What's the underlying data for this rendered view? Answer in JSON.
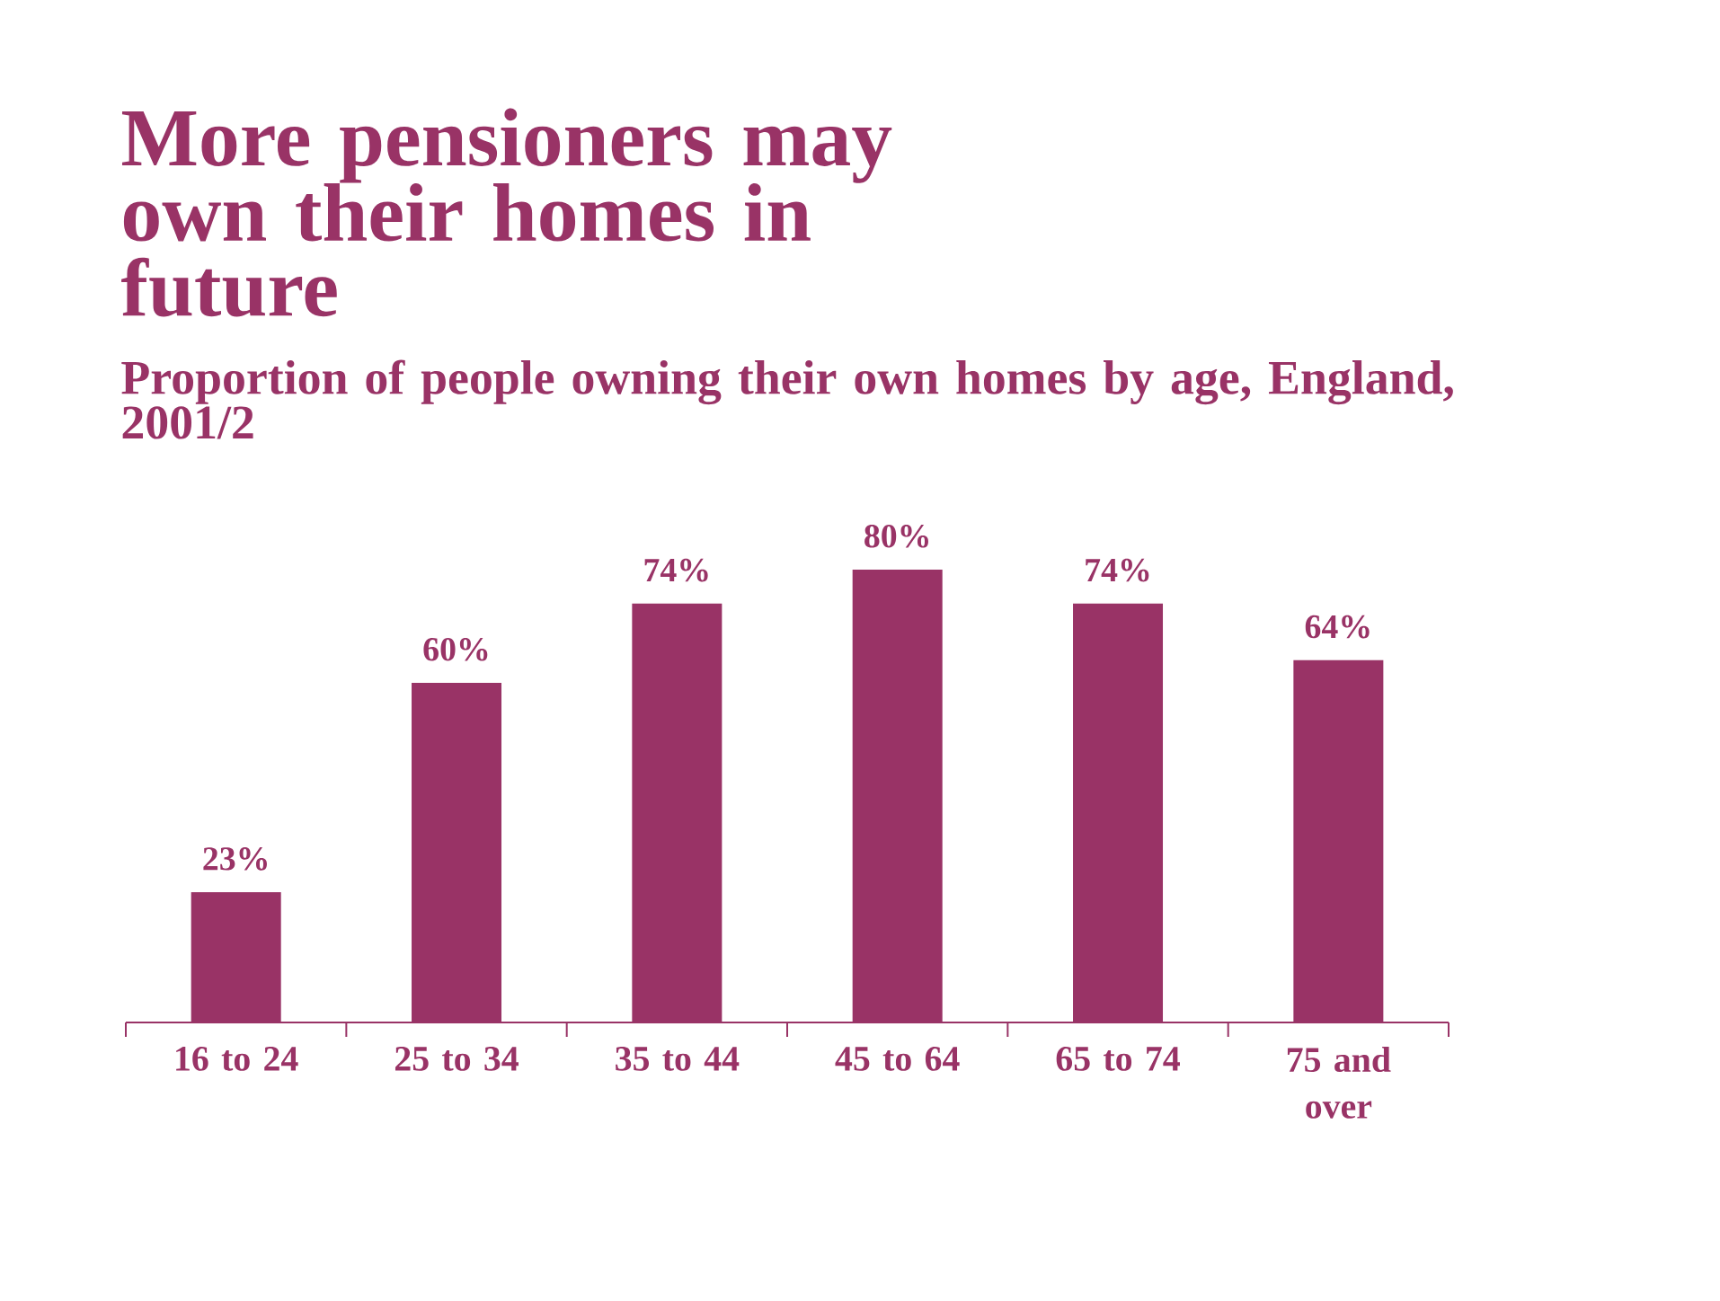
{
  "chart_data": {
    "type": "bar",
    "title": "More pensioners may own their homes in future",
    "subtitle": "Proportion of people owning their own homes by age, England, 2001/2",
    "categories": [
      "16 to 24",
      "25 to 34",
      "35 to 44",
      "45 to 64",
      "65 to 74",
      "75 and over"
    ],
    "values": [
      23,
      60,
      74,
      80,
      74,
      64
    ],
    "value_labels": [
      "23%",
      "60%",
      "74%",
      "80%",
      "74%",
      "64%"
    ],
    "color": "#993366",
    "tick_labels": "x",
    "grid": false
  }
}
